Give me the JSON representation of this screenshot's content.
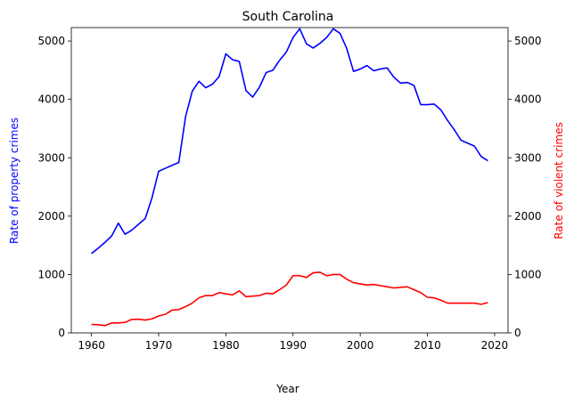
{
  "chart_data": {
    "type": "line",
    "title": "South Carolina",
    "xlabel": "Year",
    "ylabel_left": "Rate of property crimes",
    "ylabel_right": "Rate of violent crimes",
    "xlim": [
      1957,
      2022
    ],
    "ylim": [
      0,
      5230
    ],
    "x_ticks": [
      1960,
      1970,
      1980,
      1990,
      2000,
      2010,
      2020
    ],
    "y_ticks": [
      0,
      1000,
      2000,
      3000,
      4000,
      5000
    ],
    "grid": false,
    "x": [
      1960,
      1961,
      1962,
      1963,
      1964,
      1965,
      1966,
      1967,
      1968,
      1969,
      1970,
      1971,
      1972,
      1973,
      1974,
      1975,
      1976,
      1977,
      1978,
      1979,
      1980,
      1981,
      1982,
      1983,
      1984,
      1985,
      1986,
      1987,
      1988,
      1989,
      1990,
      1991,
      1992,
      1993,
      1994,
      1995,
      1996,
      1997,
      1998,
      1999,
      2000,
      2001,
      2002,
      2003,
      2004,
      2005,
      2006,
      2007,
      2008,
      2009,
      2010,
      2011,
      2012,
      2013,
      2014,
      2015,
      2016,
      2017,
      2018,
      2019
    ],
    "series": [
      {
        "axis": "left",
        "color": "#0000ff",
        "values": [
          1360,
          1450,
          1550,
          1660,
          1880,
          1690,
          1760,
          1860,
          1960,
          2310,
          2770,
          2820,
          2870,
          2920,
          3700,
          4140,
          4310,
          4200,
          4260,
          4390,
          4780,
          4680,
          4650,
          4150,
          4040,
          4210,
          4460,
          4500,
          4670,
          4810,
          5060,
          5210,
          4950,
          4880,
          4960,
          5060,
          5210,
          5130,
          4870,
          4480,
          4520,
          4580,
          4490,
          4520,
          4540,
          4380,
          4280,
          4290,
          4240,
          3910,
          3910,
          3920,
          3820,
          3640,
          3480,
          3300,
          3250,
          3200,
          3020,
          2950
        ]
      },
      {
        "axis": "right",
        "color": "#ff0000",
        "values": [
          145,
          140,
          125,
          170,
          170,
          180,
          230,
          235,
          220,
          240,
          290,
          320,
          390,
          400,
          450,
          510,
          600,
          640,
          640,
          690,
          670,
          650,
          720,
          620,
          630,
          640,
          680,
          670,
          740,
          820,
          980,
          980,
          950,
          1030,
          1040,
          980,
          1000,
          1000,
          920,
          860,
          840,
          820,
          830,
          810,
          790,
          770,
          780,
          790,
          740,
          690,
          610,
          600,
          560,
          510,
          510,
          510,
          510,
          510,
          490,
          520
        ]
      }
    ]
  }
}
